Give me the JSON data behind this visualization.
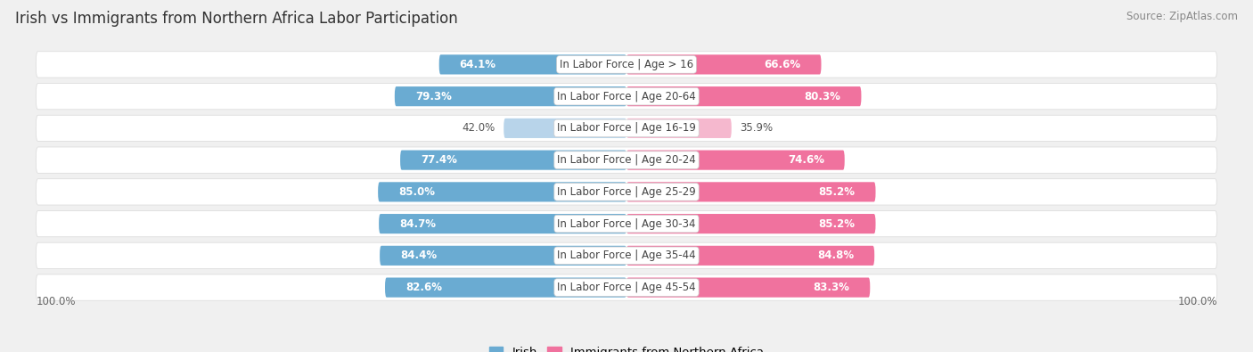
{
  "title": "Irish vs Immigrants from Northern Africa Labor Participation",
  "source": "Source: ZipAtlas.com",
  "categories": [
    "In Labor Force | Age > 16",
    "In Labor Force | Age 20-64",
    "In Labor Force | Age 16-19",
    "In Labor Force | Age 20-24",
    "In Labor Force | Age 25-29",
    "In Labor Force | Age 30-34",
    "In Labor Force | Age 35-44",
    "In Labor Force | Age 45-54"
  ],
  "irish_values": [
    64.1,
    79.3,
    42.0,
    77.4,
    85.0,
    84.7,
    84.4,
    82.6
  ],
  "immigrant_values": [
    66.6,
    80.3,
    35.9,
    74.6,
    85.2,
    85.2,
    84.8,
    83.3
  ],
  "irish_color": "#6aabd2",
  "irish_color_light": "#b8d4ea",
  "immigrant_color": "#f0729e",
  "immigrant_color_light": "#f5b8ce",
  "label_irish": "Irish",
  "label_immigrant": "Immigrants from Northern Africa",
  "background_color": "#f0f0f0",
  "row_bg_color": "#e8e8e8",
  "max_value": 100.0,
  "bar_height": 0.62,
  "title_fontsize": 12,
  "label_fontsize": 8.5,
  "value_fontsize": 8.5,
  "legend_fontsize": 9.5,
  "light_rows": [
    2
  ]
}
